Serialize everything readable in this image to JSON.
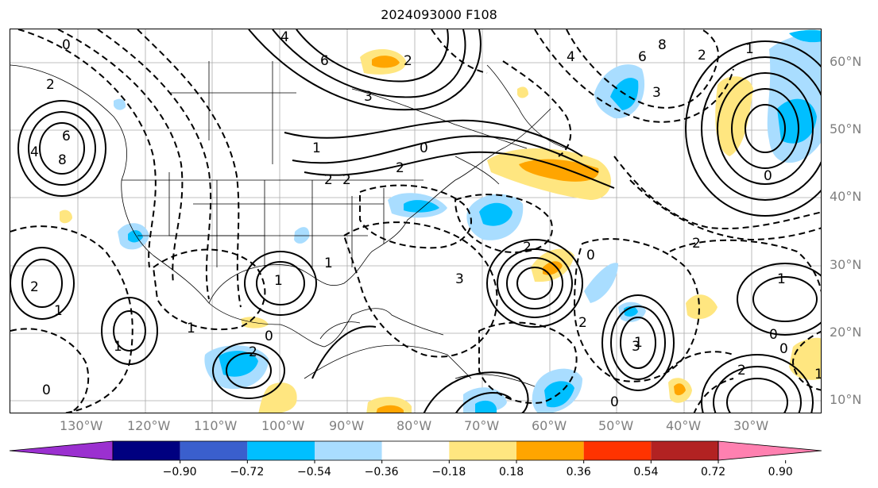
{
  "title": "2024093000 F108",
  "lon_labels": [
    "130°W",
    "120°W",
    "110°W",
    "100°W",
    "90°W",
    "80°W",
    "70°W",
    "60°W",
    "50°W",
    "40°W",
    "30°W"
  ],
  "lat_labels": [
    "60°N",
    "50°N",
    "40°N",
    "30°N",
    "20°N",
    "10°N"
  ],
  "colorbar": {
    "ticks": [
      "−0.90",
      "−0.72",
      "−0.54",
      "−0.36",
      "−0.18",
      "0.18",
      "0.36",
      "0.54",
      "0.72",
      "0.90"
    ],
    "colors": [
      "#9b30d0",
      "#000080",
      "#3a5fcd",
      "#00bfff",
      "#a9ddff",
      "#ffffff",
      "#ffe680",
      "#ffa500",
      "#ff3300",
      "#b22222",
      "#ff80b0"
    ]
  },
  "contour_labels": [
    "0",
    "2",
    "4",
    "6",
    "8",
    "3",
    "2",
    "1",
    "1",
    "2",
    "1",
    "0",
    "1",
    "2",
    "2",
    "1",
    "2",
    "3",
    "6",
    "4",
    "2",
    "0",
    "8",
    "6",
    "4",
    "1",
    "2",
    "3",
    "2",
    "0",
    "0",
    "1",
    "2",
    "0",
    "3",
    "0",
    "2",
    "1",
    "2",
    "1",
    "0",
    "1",
    "0"
  ],
  "colors": {
    "neg_shade": "#00bfff",
    "light_neg": "#a9ddff",
    "pos_light": "#ffe680",
    "pos_mid": "#ffa500"
  }
}
